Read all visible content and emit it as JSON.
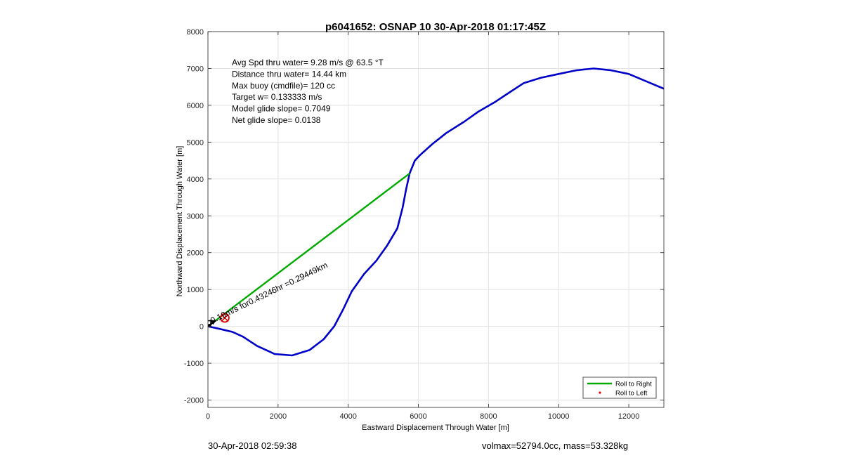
{
  "chart_data": {
    "type": "line",
    "title": "p6041652: OSNAP 10 30-Apr-2018 01:17:45Z",
    "xlabel": "Eastward Displacement Through Water [m]",
    "ylabel": "Northward Displacement Through Water [m]",
    "xlim": [
      0,
      13000
    ],
    "ylim": [
      -2200,
      8000
    ],
    "xticks": [
      0,
      2000,
      4000,
      6000,
      8000,
      10000,
      12000
    ],
    "yticks": [
      -2000,
      -1000,
      0,
      1000,
      2000,
      3000,
      4000,
      5000,
      6000,
      7000,
      8000
    ],
    "grid": true,
    "annotations": [
      "Avg Spd thru water=  9.28 m/s @  63.5 °T",
      "Distance thru water= 14.44 km",
      "Max buoy (cmdfile)= 120 cc",
      "Target w= 0.133333 m/s",
      "Model glide slope= 0.7049",
      "Net glide slope= 0.0138"
    ],
    "rotated_annotation": "0.19m/s for0.43246hr =0.29449km",
    "legend_position": "bottom-right",
    "series": [
      {
        "name": "",
        "color": "#0000c8",
        "x": [
          0,
          300,
          700,
          1000,
          1400,
          1900,
          2400,
          2900,
          3300,
          3600,
          3850,
          4100,
          4450,
          4800,
          5100,
          5400,
          5550,
          5650,
          5750,
          5900,
          6050,
          6400,
          6800,
          7300,
          7700,
          8200,
          8600,
          9000,
          9500,
          10000,
          10500,
          11000,
          11500,
          12000,
          12500,
          13000
        ],
        "y": [
          0,
          -60,
          -150,
          -280,
          -530,
          -750,
          -790,
          -640,
          -350,
          0,
          450,
          950,
          1420,
          1780,
          2180,
          2660,
          3220,
          3720,
          4150,
          4500,
          4650,
          4950,
          5250,
          5550,
          5820,
          6100,
          6350,
          6600,
          6750,
          6850,
          6950,
          7000,
          6950,
          6850,
          6650,
          6450
        ]
      },
      {
        "name": "Roll to Right",
        "color": "#00aa00",
        "x": [
          0,
          5750
        ],
        "y": [
          0,
          4150
        ]
      },
      {
        "name": "Roll to Left",
        "color": "#ff0000",
        "marker": "dot",
        "x": [],
        "y": []
      }
    ],
    "markers": {
      "circle_at": [
        480,
        230
      ],
      "arrow_from": [
        0,
        0
      ],
      "arrow_to": [
        230,
        160
      ]
    }
  },
  "footer": {
    "left": "30-Apr-2018 02:59:38",
    "right": "volmax=52794.0cc, mass=53.328kg"
  }
}
